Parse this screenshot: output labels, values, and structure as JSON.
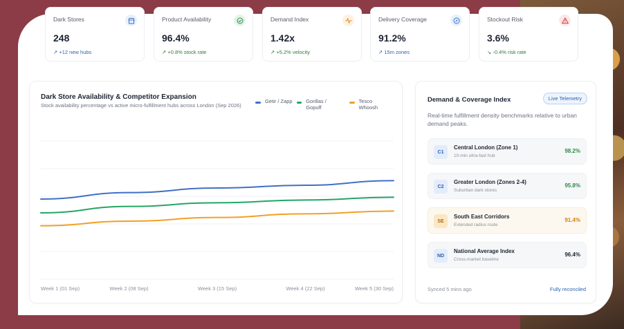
{
  "kpis": [
    {
      "title": "Dark Stores",
      "value": "248",
      "trend": "+12 new hubs",
      "icon": "store-icon",
      "icon_color": "#3a72c8",
      "icon_bg": "#e8f0fb"
    },
    {
      "title": "Product Availability",
      "value": "96.4%",
      "trend": "+0.8% stock rate",
      "icon": "check-circle-icon",
      "icon_color": "#2f8a4a",
      "icon_bg": "#e5f4ea"
    },
    {
      "title": "Demand Index",
      "value": "1.42x",
      "trend": "+5.2% velocity",
      "icon": "pulse-icon",
      "icon_color": "#e0892a",
      "icon_bg": "#fdf1e2"
    },
    {
      "title": "Delivery Coverage",
      "value": "91.2%",
      "trend": "15m zones",
      "icon": "compass-icon",
      "icon_color": "#3a72c8",
      "icon_bg": "#e8f0fb"
    },
    {
      "title": "Stockout Risk",
      "value": "3.6%",
      "trend": "-0.4% risk rate",
      "icon": "warning-icon",
      "icon_color": "#d23b3b",
      "icon_bg": "#fde8e8"
    }
  ],
  "chart_card": {
    "title": "Dark Store Availability & Competitor Expansion",
    "subtitle": "Stock availability percentage vs active micro-fulfillment hubs across London (Sep 2026)"
  },
  "chart_data": {
    "type": "line",
    "categories": [
      "Week 1 (01 Sep)",
      "Week 2 (08 Sep)",
      "Week 3 (15 Sep)",
      "Week 4 (22 Sep)",
      "Week 5 (30 Sep)"
    ],
    "series": [
      {
        "name": "Getir / Zapp",
        "color": "#3f6fc4",
        "values": [
          57,
          64,
          69,
          72,
          77
        ]
      },
      {
        "name": "Gorillas / Gopuff",
        "color": "#22a565",
        "values": [
          42,
          49,
          53,
          56,
          59
        ]
      },
      {
        "name": "Tesco Whoosh",
        "color": "#f2a024",
        "values": [
          28,
          33,
          37,
          41,
          44
        ]
      }
    ],
    "ylim": [
      -30,
      120
    ],
    "grid": true,
    "legend": "top-right"
  },
  "side": {
    "title": "Demand & Coverage Index",
    "badge": "Live Telemetry",
    "description": "Real-time fulfillment density benchmarks relative to urban demand peaks.",
    "regions": [
      {
        "code": "C1",
        "name": "Central London (Zone 1)",
        "sub": "10-min ultra-fast hub",
        "value": "98.2%",
        "code_bg": "#e3ecfa",
        "code_color": "#2a5fb0",
        "value_color": "#2f8a4a",
        "bg": "#f6f7f9"
      },
      {
        "code": "C2",
        "name": "Greater London (Zones 2-4)",
        "sub": "Suburban dark stores",
        "value": "95.8%",
        "code_bg": "#e3ecfa",
        "code_color": "#2a5fb0",
        "value_color": "#2f8a4a",
        "bg": "#f6f7f9"
      },
      {
        "code": "SE",
        "name": "South East Corridors",
        "sub": "Extended radius route",
        "value": "91.4%",
        "code_bg": "#fbe7c4",
        "code_color": "#b26a10",
        "value_color": "#d17f1a",
        "bg": "#fdf8ef"
      },
      {
        "code": "ND",
        "name": "National Average Index",
        "sub": "Cross-market baseline",
        "value": "96.4%",
        "code_bg": "#e3ecfa",
        "code_color": "#2a5fb0",
        "value_color": "#1d2433",
        "bg": "#f6f7f9"
      }
    ],
    "footer_left": "Synced 5 mins ago",
    "footer_right": "Fully reconciled"
  }
}
